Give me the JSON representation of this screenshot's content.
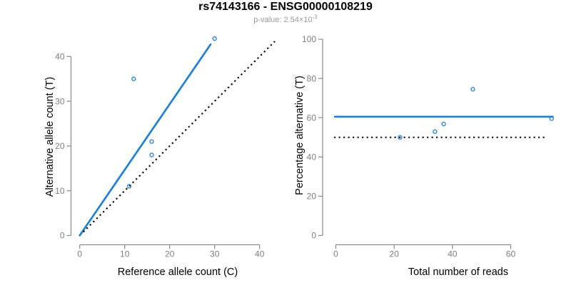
{
  "header": {
    "title": "rs74143166 - ENSG00000108219",
    "p_value_text": "p-value: 2.54×10",
    "p_value_exponent": "-3"
  },
  "colors": {
    "accent": "#1E7FD8",
    "black": "#000000",
    "axis": "#8A8A8A",
    "tick_label": "#7E7E7E",
    "axis_label": "#000000",
    "subtitle": "#9A9A9A",
    "background": "#FFFFFF"
  },
  "chart_data": [
    {
      "type": "scatter",
      "name": "allele-counts",
      "xlabel": "Reference allele count (C)",
      "ylabel": "Alternative allele count (T)",
      "xticks": [
        0,
        10,
        20,
        30,
        40
      ],
      "yticks": [
        0,
        10,
        20,
        30,
        40
      ],
      "xlim": [
        -1.7,
        43.4
      ],
      "ylim": [
        -1.8,
        44.2
      ],
      "grid": false,
      "points": [
        [
          12,
          35
        ],
        [
          16,
          21
        ],
        [
          16,
          18
        ],
        [
          11,
          11
        ],
        [
          30,
          44
        ]
      ],
      "lines": [
        {
          "name": "fit-line",
          "style": "solid",
          "color_key": "accent",
          "x1": 0,
          "y1": 0,
          "x2": 29.1,
          "y2": 42.7
        },
        {
          "name": "identity-line",
          "style": "dotted",
          "color_key": "black",
          "x1": 0.8,
          "y1": 0.8,
          "x2": 43.4,
          "y2": 43.4
        }
      ]
    },
    {
      "type": "scatter",
      "name": "percentage-alternative",
      "xlabel": "Total number of reads",
      "ylabel": "Percentage alternative (T)",
      "xticks": [
        0,
        20,
        40,
        60
      ],
      "yticks": [
        0,
        20,
        40,
        60,
        80,
        100
      ],
      "xlim": [
        -3.0,
        77.5
      ],
      "ylim": [
        -4.0,
        104.0
      ],
      "grid": false,
      "points": [
        [
          22,
          50
        ],
        [
          34,
          52.9
        ],
        [
          37,
          56.8
        ],
        [
          47,
          74.5
        ],
        [
          74,
          59.5
        ]
      ],
      "lines": [
        {
          "name": "mean-line",
          "style": "solid",
          "color_key": "accent",
          "x1": -0.3,
          "y1": 60.5,
          "x2": 74.4,
          "y2": 60.5
        },
        {
          "name": "expected-line",
          "style": "dotted",
          "color_key": "black",
          "x1": -0.6,
          "y1": 50,
          "x2": 72.5,
          "y2": 50
        }
      ]
    }
  ]
}
